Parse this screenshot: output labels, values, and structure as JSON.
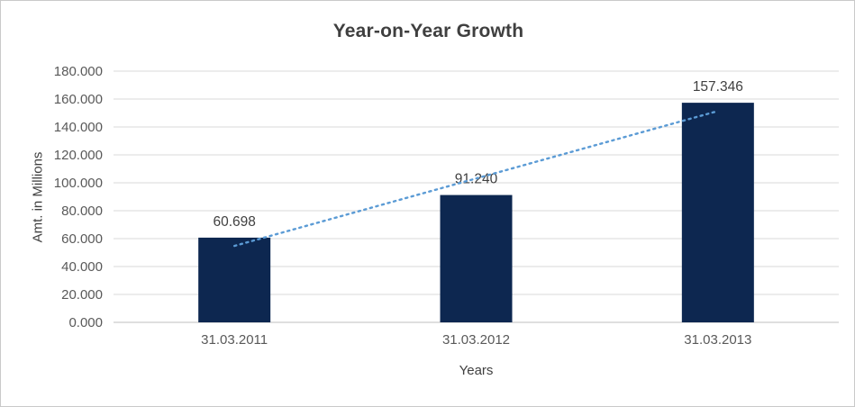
{
  "chart_data": {
    "type": "bar",
    "title": "Year-on-Year Growth",
    "categories": [
      "31.03.2011",
      "31.03.2012",
      "31.03.2013"
    ],
    "values": [
      60.698,
      91.24,
      157.346
    ],
    "data_labels": [
      "60.698",
      "91.240",
      "157.346"
    ],
    "xlabel": "Years",
    "ylabel": "Amt. in Millions",
    "ylim": [
      0,
      180
    ],
    "ytick_step": 20,
    "ytick_labels": [
      "0.000",
      "20.000",
      "40.000",
      "60.000",
      "80.000",
      "100.000",
      "120.000",
      "140.000",
      "160.000",
      "180.000"
    ],
    "grid": true,
    "legend": "none",
    "trendline": {
      "type": "linear",
      "style": "dotted",
      "color": "#5B9BD5"
    },
    "colors": {
      "bar": "#0D2750",
      "grid": "#D9D9D9",
      "axis": "#BFBFBF",
      "title_text": "#3F3F3F",
      "tick_text": "#595959",
      "data_label_text": "#404040"
    }
  }
}
